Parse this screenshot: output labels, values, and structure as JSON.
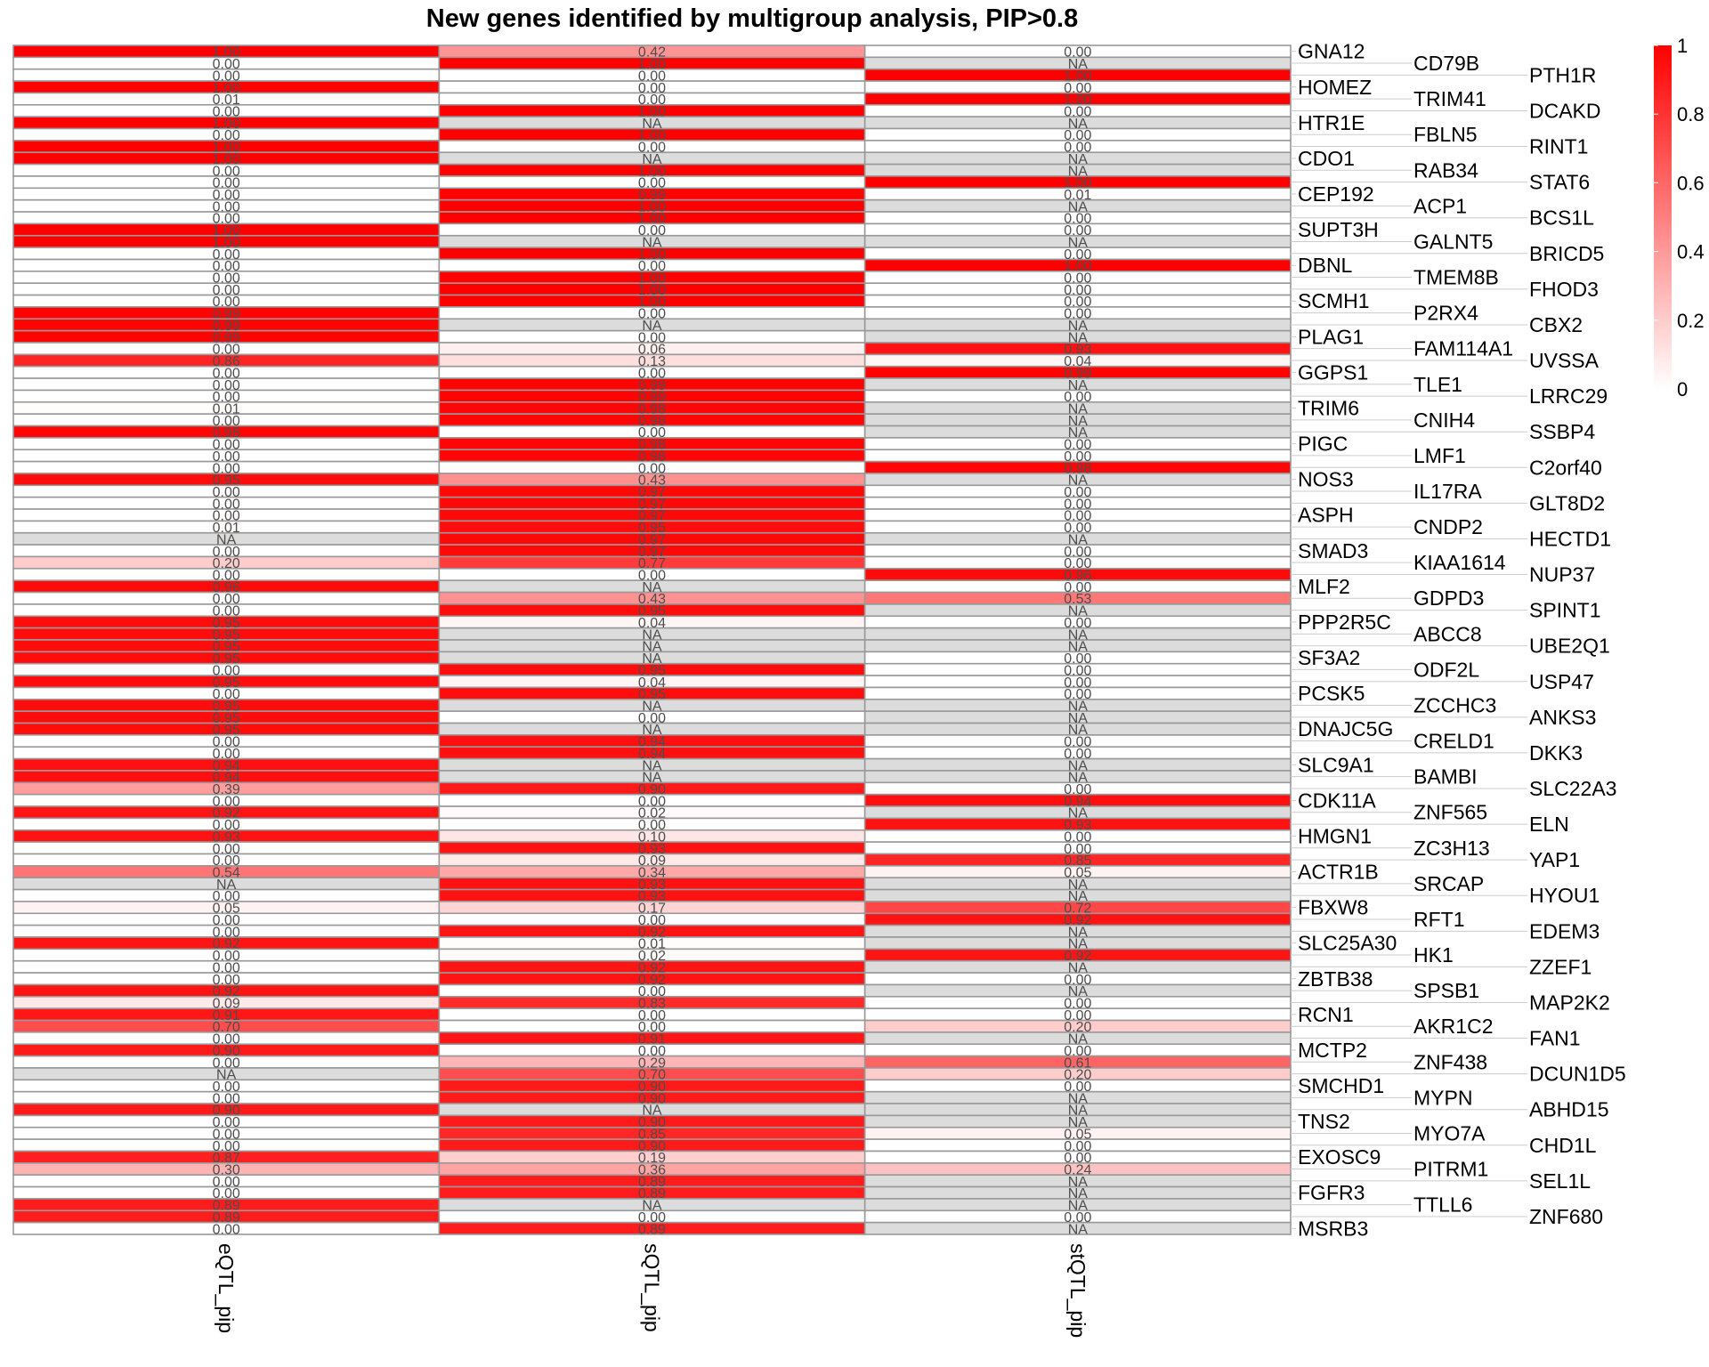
{
  "chart_data": {
    "type": "heatmap",
    "title": "New genes identified by multigroup analysis, PIP>0.8",
    "columns": [
      "eQTL_pip",
      "sQTL_pip",
      "stQTL_pip"
    ],
    "rows": [
      "GNA12",
      "CD79B",
      "PTH1R",
      "HOMEZ",
      "TRIM41",
      "DCAKD",
      "HTR1E",
      "FBLN5",
      "RINT1",
      "CDO1",
      "RAB34",
      "STAT6",
      "CEP192",
      "ACP1",
      "BCS1L",
      "SUPT3H",
      "GALNT5",
      "BRICD5",
      "DBNL",
      "TMEM8B",
      "FHOD3",
      "SCMH1",
      "P2RX4",
      "CBX2",
      "PLAG1",
      "FAM114A1",
      "UVSSA",
      "GGPS1",
      "TLE1",
      "LRRC29",
      "TRIM6",
      "CNIH4",
      "SSBP4",
      "PIGC",
      "LMF1",
      "C2orf40",
      "NOS3",
      "IL17RA",
      "GLT8D2",
      "ASPH",
      "CNDP2",
      "HECTD1",
      "SMAD3",
      "KIAA1614",
      "NUP37",
      "MLF2",
      "GDPD3",
      "SPINT1",
      "PPP2R5C",
      "ABCC8",
      "UBE2Q1",
      "SF3A2",
      "ODF2L",
      "USP47",
      "PCSK5",
      "ZCCHC3",
      "ANKS3",
      "DNAJC5G",
      "CRELD1",
      "DKK3",
      "SLC9A1",
      "BAMBI",
      "SLC22A3",
      "CDK11A",
      "ZNF565",
      "ELN",
      "HMGN1",
      "ZC3H13",
      "YAP1",
      "ACTR1B",
      "SRCAP",
      "HYOU1",
      "FBXW8",
      "RFT1",
      "EDEM3",
      "SLC25A30",
      "HK1",
      "ZZEF1",
      "ZBTB38",
      "SPSB1",
      "MAP2K2",
      "RCN1",
      "AKR1C2",
      "FAN1",
      "MCTP2",
      "ZNF438",
      "DCUN1D5",
      "SMCHD1",
      "MYPN",
      "ABHD15",
      "TNS2",
      "MYO7A",
      "CHD1L",
      "EXOSC9",
      "PITRM1",
      "SEL1L",
      "FGFR3",
      "TTLL6",
      "ZNF680",
      "MSRB3"
    ],
    "values": {
      "eQTL_pip": [
        1.0,
        0.0,
        0.0,
        1.0,
        0.01,
        0.0,
        1.0,
        0.0,
        1.0,
        1.0,
        0.0,
        0.0,
        0.0,
        0.0,
        0.0,
        1.0,
        1.0,
        0.0,
        0.0,
        0.0,
        0.0,
        0.0,
        0.99,
        0.99,
        0.99,
        0.0,
        0.86,
        0.0,
        0.0,
        0.0,
        0.01,
        0.0,
        0.98,
        0.0,
        0.0,
        0.0,
        0.95,
        0.0,
        0.0,
        0.0,
        0.01,
        null,
        0.0,
        0.2,
        0.0,
        0.96,
        0.0,
        0.0,
        0.95,
        0.95,
        0.95,
        0.95,
        0.0,
        0.95,
        0.0,
        0.95,
        0.95,
        0.95,
        0.0,
        0.0,
        0.94,
        0.94,
        0.39,
        0.0,
        0.92,
        0.0,
        0.93,
        0.0,
        0.0,
        0.54,
        null,
        0.0,
        0.05,
        0.0,
        0.0,
        0.92,
        0.0,
        0.0,
        0.0,
        0.92,
        0.09,
        0.91,
        0.7,
        0.0,
        0.9,
        0.0,
        null,
        0.0,
        0.0,
        0.9,
        0.0,
        0.0,
        0.0,
        0.87,
        0.3,
        0.0,
        0.0,
        0.89,
        0.89,
        0.0
      ],
      "sQTL_pip": [
        0.42,
        1.0,
        0.0,
        0.0,
        0.0,
        1.0,
        null,
        1.0,
        0.0,
        null,
        1.0,
        0.0,
        0.99,
        1.0,
        1.0,
        0.0,
        null,
        1.0,
        0.0,
        1.0,
        1.0,
        1.0,
        0.0,
        null,
        0.0,
        0.06,
        0.13,
        0.0,
        0.99,
        0.99,
        0.98,
        0.98,
        0.0,
        0.98,
        0.98,
        0.0,
        0.43,
        0.97,
        0.97,
        0.97,
        0.95,
        0.97,
        0.97,
        0.77,
        0.0,
        null,
        0.43,
        0.95,
        0.04,
        null,
        null,
        null,
        0.95,
        0.04,
        0.95,
        null,
        0.0,
        null,
        0.94,
        0.94,
        null,
        null,
        0.9,
        0.0,
        0.02,
        0.0,
        0.1,
        0.93,
        0.09,
        0.34,
        0.93,
        0.93,
        0.17,
        0.0,
        0.92,
        0.01,
        0.02,
        0.92,
        0.92,
        0.0,
        0.83,
        0.0,
        0.0,
        0.91,
        0.0,
        0.29,
        0.7,
        0.9,
        0.9,
        null,
        0.9,
        0.85,
        0.9,
        0.19,
        0.36,
        0.89,
        0.89,
        null,
        0.0,
        0.89
      ],
      "stQTL_pip": [
        0.0,
        null,
        1.0,
        0.0,
        1.0,
        0.0,
        null,
        0.0,
        0.0,
        null,
        null,
        1.0,
        0.01,
        null,
        0.0,
        0.0,
        null,
        0.0,
        1.0,
        0.0,
        0.0,
        0.0,
        0.0,
        null,
        null,
        0.93,
        0.04,
        0.99,
        null,
        0.0,
        null,
        null,
        null,
        0.0,
        0.0,
        0.98,
        null,
        0.0,
        0.0,
        0.0,
        0.0,
        null,
        0.0,
        0.0,
        0.96,
        0.0,
        0.53,
        null,
        0.0,
        null,
        null,
        0.0,
        0.0,
        0.0,
        0.0,
        null,
        null,
        null,
        0.0,
        0.0,
        null,
        null,
        0.0,
        0.94,
        null,
        0.93,
        0.0,
        0.0,
        0.85,
        0.05,
        null,
        null,
        0.72,
        0.92,
        null,
        null,
        0.92,
        null,
        0.0,
        null,
        0.0,
        0.0,
        0.2,
        null,
        0.0,
        0.61,
        0.2,
        0.0,
        null,
        null,
        null,
        0.05,
        0.0,
        0.0,
        0.24,
        null,
        null,
        null,
        0.0,
        null
      ]
    },
    "na_label": "NA",
    "color_scale": {
      "low": "#FFFFFF",
      "high": "#FF0000",
      "na": "#DCDCDC",
      "range": [
        0,
        1
      ]
    },
    "legend": {
      "ticks": [
        0,
        0.2,
        0.4,
        0.6,
        0.8,
        1
      ],
      "tick_labels": [
        "0",
        "0.2",
        "0.4",
        "0.6",
        "0.8",
        "1"
      ],
      "placement": "top-right"
    },
    "cell_border_color": "#999999",
    "cell_text_color": "#4D4D4D"
  }
}
